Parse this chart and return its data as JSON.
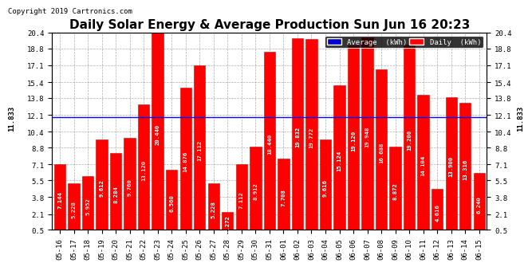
{
  "title": "Daily Solar Energy & Average Production Sun Jun 16 20:23",
  "copyright": "Copyright 2019 Cartronics.com",
  "average_value": 11.833,
  "average_label": "11.833",
  "categories": [
    "05-16",
    "05-17",
    "05-18",
    "05-19",
    "05-20",
    "05-21",
    "05-22",
    "05-23",
    "05-24",
    "05-25",
    "05-26",
    "05-27",
    "05-28",
    "05-29",
    "05-30",
    "05-31",
    "06-01",
    "06-02",
    "06-03",
    "06-04",
    "06-05",
    "06-06",
    "06-07",
    "06-08",
    "06-09",
    "06-10",
    "06-11",
    "06-12",
    "06-13",
    "06-14",
    "06-15"
  ],
  "values": [
    7.144,
    5.228,
    5.952,
    9.612,
    8.284,
    9.76,
    13.12,
    20.44,
    6.56,
    14.876,
    17.112,
    5.228,
    2.272,
    7.112,
    8.912,
    18.44,
    7.708,
    19.832,
    19.772,
    9.616,
    15.124,
    19.12,
    19.948,
    16.688,
    8.872,
    19.2,
    14.104,
    4.616,
    13.9,
    13.316,
    6.24
  ],
  "value_labels": [
    "7.144",
    "5.228",
    "5.952",
    "9.612",
    "8.284",
    "9.760",
    "13.120",
    "20.440",
    "6.560",
    "14.876",
    "17.112",
    "5.228",
    "2.272",
    "7.112",
    "8.912",
    "18.440",
    "7.708",
    "19.832",
    "19.772",
    "9.616",
    "15.124",
    "19.120",
    "19.948",
    "16.688",
    "8.872",
    "19.200",
    "14.104",
    "4.616",
    "13.900",
    "13.316",
    "6.240"
  ],
  "bar_color": "#FF0000",
  "bar_edge_color": "#CC0000",
  "avg_line_color": "#0000FF",
  "background_color": "#FFFFFF",
  "plot_bg_color": "#FFFFFF",
  "grid_color": "#999999",
  "title_fontsize": 11,
  "copyright_fontsize": 6.5,
  "tick_fontsize": 6.5,
  "value_fontsize": 5.2,
  "ylim": [
    0.5,
    20.4
  ],
  "yticks": [
    0.5,
    2.1,
    3.8,
    5.5,
    7.1,
    8.8,
    10.4,
    12.1,
    13.8,
    15.4,
    17.1,
    18.8,
    20.4
  ],
  "legend_avg_color": "#0000CD",
  "legend_daily_color": "#FF0000",
  "legend_avg_text": "Average  (kWh)",
  "legend_daily_text": "Daily  (kWh)"
}
